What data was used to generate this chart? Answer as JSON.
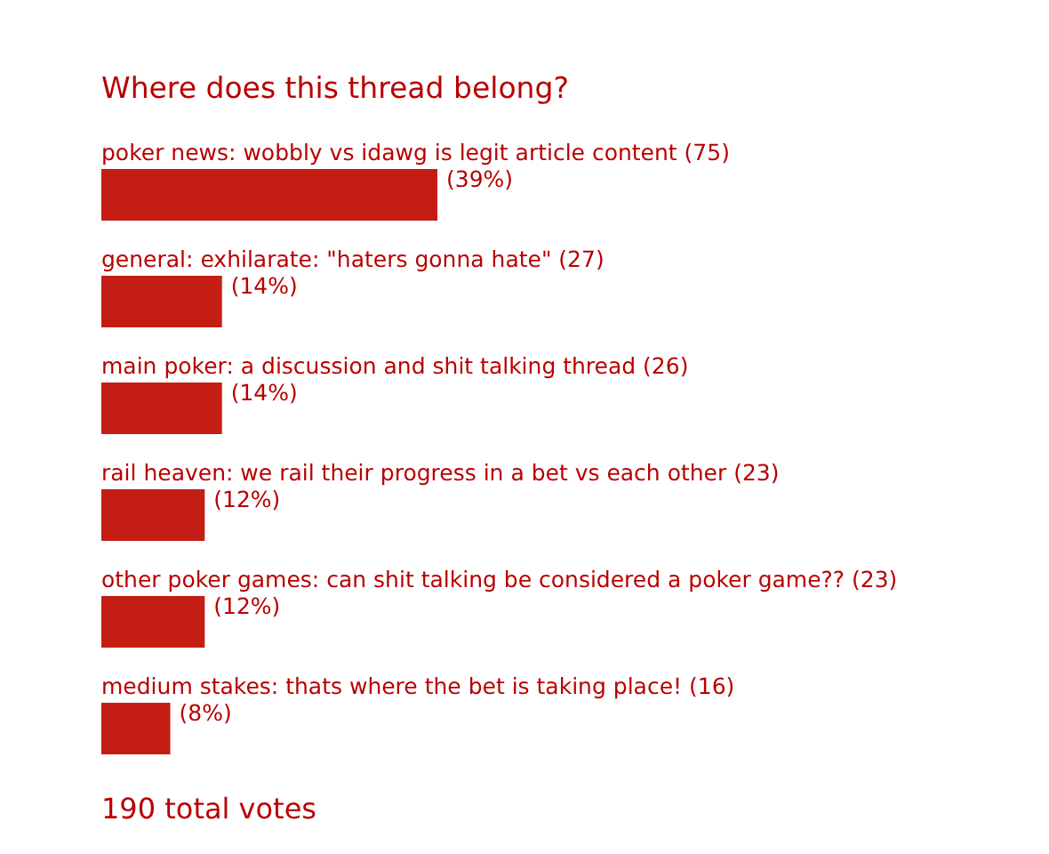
{
  "chart_data": {
    "type": "bar",
    "orientation": "horizontal",
    "title": "Where does this thread belong?",
    "categories": [
      "poker news: wobbly vs idawg is legit article content (75)",
      "general: exhilarate: \"haters gonna hate\" (27)",
      "main poker: a discussion and shit talking thread (26)",
      "rail heaven: we rail their progress in a bet vs each other (23)",
      "other poker games: can shit talking be considered a poker game?? (23)",
      "medium stakes: thats where the bet is taking place! (16)"
    ],
    "values": [
      39,
      14,
      14,
      12,
      12,
      8
    ],
    "value_labels": [
      "(39%)",
      "(14%)",
      "(14%)",
      "(12%)",
      "(12%)",
      "(8%)"
    ],
    "color": "#c41e14",
    "annotations": [
      "190 total votes"
    ]
  }
}
